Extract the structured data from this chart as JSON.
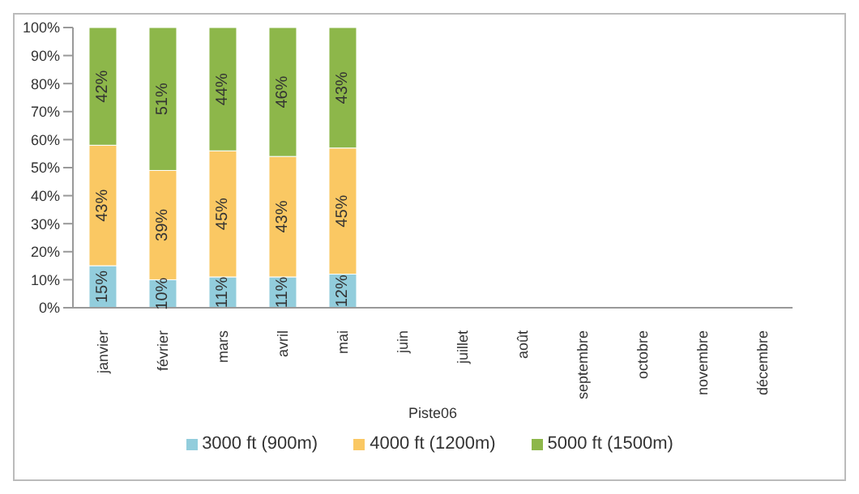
{
  "chart_data": {
    "type": "bar",
    "stacked": true,
    "xlabel": "Piste06",
    "categories": [
      "janvier",
      "février",
      "mars",
      "avril",
      "mai",
      "juin",
      "juillet",
      "août",
      "septembre",
      "octobre",
      "novembre",
      "décembre"
    ],
    "series": [
      {
        "name": "3000 ft (900m)",
        "color": "#92cddc",
        "values": [
          15,
          10,
          11,
          11,
          12,
          null,
          null,
          null,
          null,
          null,
          null,
          null
        ],
        "value_labels": [
          "15%",
          "10%",
          "11%",
          "11%",
          "12%",
          null,
          null,
          null,
          null,
          null,
          null,
          null
        ]
      },
      {
        "name": "4000 ft (1200m)",
        "color": "#fac863",
        "values": [
          43,
          39,
          45,
          43,
          45,
          null,
          null,
          null,
          null,
          null,
          null,
          null
        ],
        "value_labels": [
          "43%",
          "39%",
          "45%",
          "43%",
          "45%",
          null,
          null,
          null,
          null,
          null,
          null,
          null
        ]
      },
      {
        "name": "5000 ft (1500m)",
        "color": "#8db74a",
        "values": [
          42,
          51,
          44,
          46,
          43,
          null,
          null,
          null,
          null,
          null,
          null,
          null
        ],
        "value_labels": [
          "42%",
          "51%",
          "44%",
          "46%",
          "43%",
          null,
          null,
          null,
          null,
          null,
          null,
          null
        ]
      }
    ],
    "ylim": [
      0,
      100
    ],
    "yticks": [
      {
        "value": 0,
        "label": "0%"
      },
      {
        "value": 10,
        "label": "10%"
      },
      {
        "value": 20,
        "label": "20%"
      },
      {
        "value": 30,
        "label": "30%"
      },
      {
        "value": 40,
        "label": "40%"
      },
      {
        "value": 50,
        "label": "50%"
      },
      {
        "value": 60,
        "label": "60%"
      },
      {
        "value": 70,
        "label": "70%"
      },
      {
        "value": 80,
        "label": "80%"
      },
      {
        "value": 90,
        "label": "90%"
      },
      {
        "value": 100,
        "label": "100%"
      }
    ],
    "grid": false,
    "legend": "bottom"
  }
}
